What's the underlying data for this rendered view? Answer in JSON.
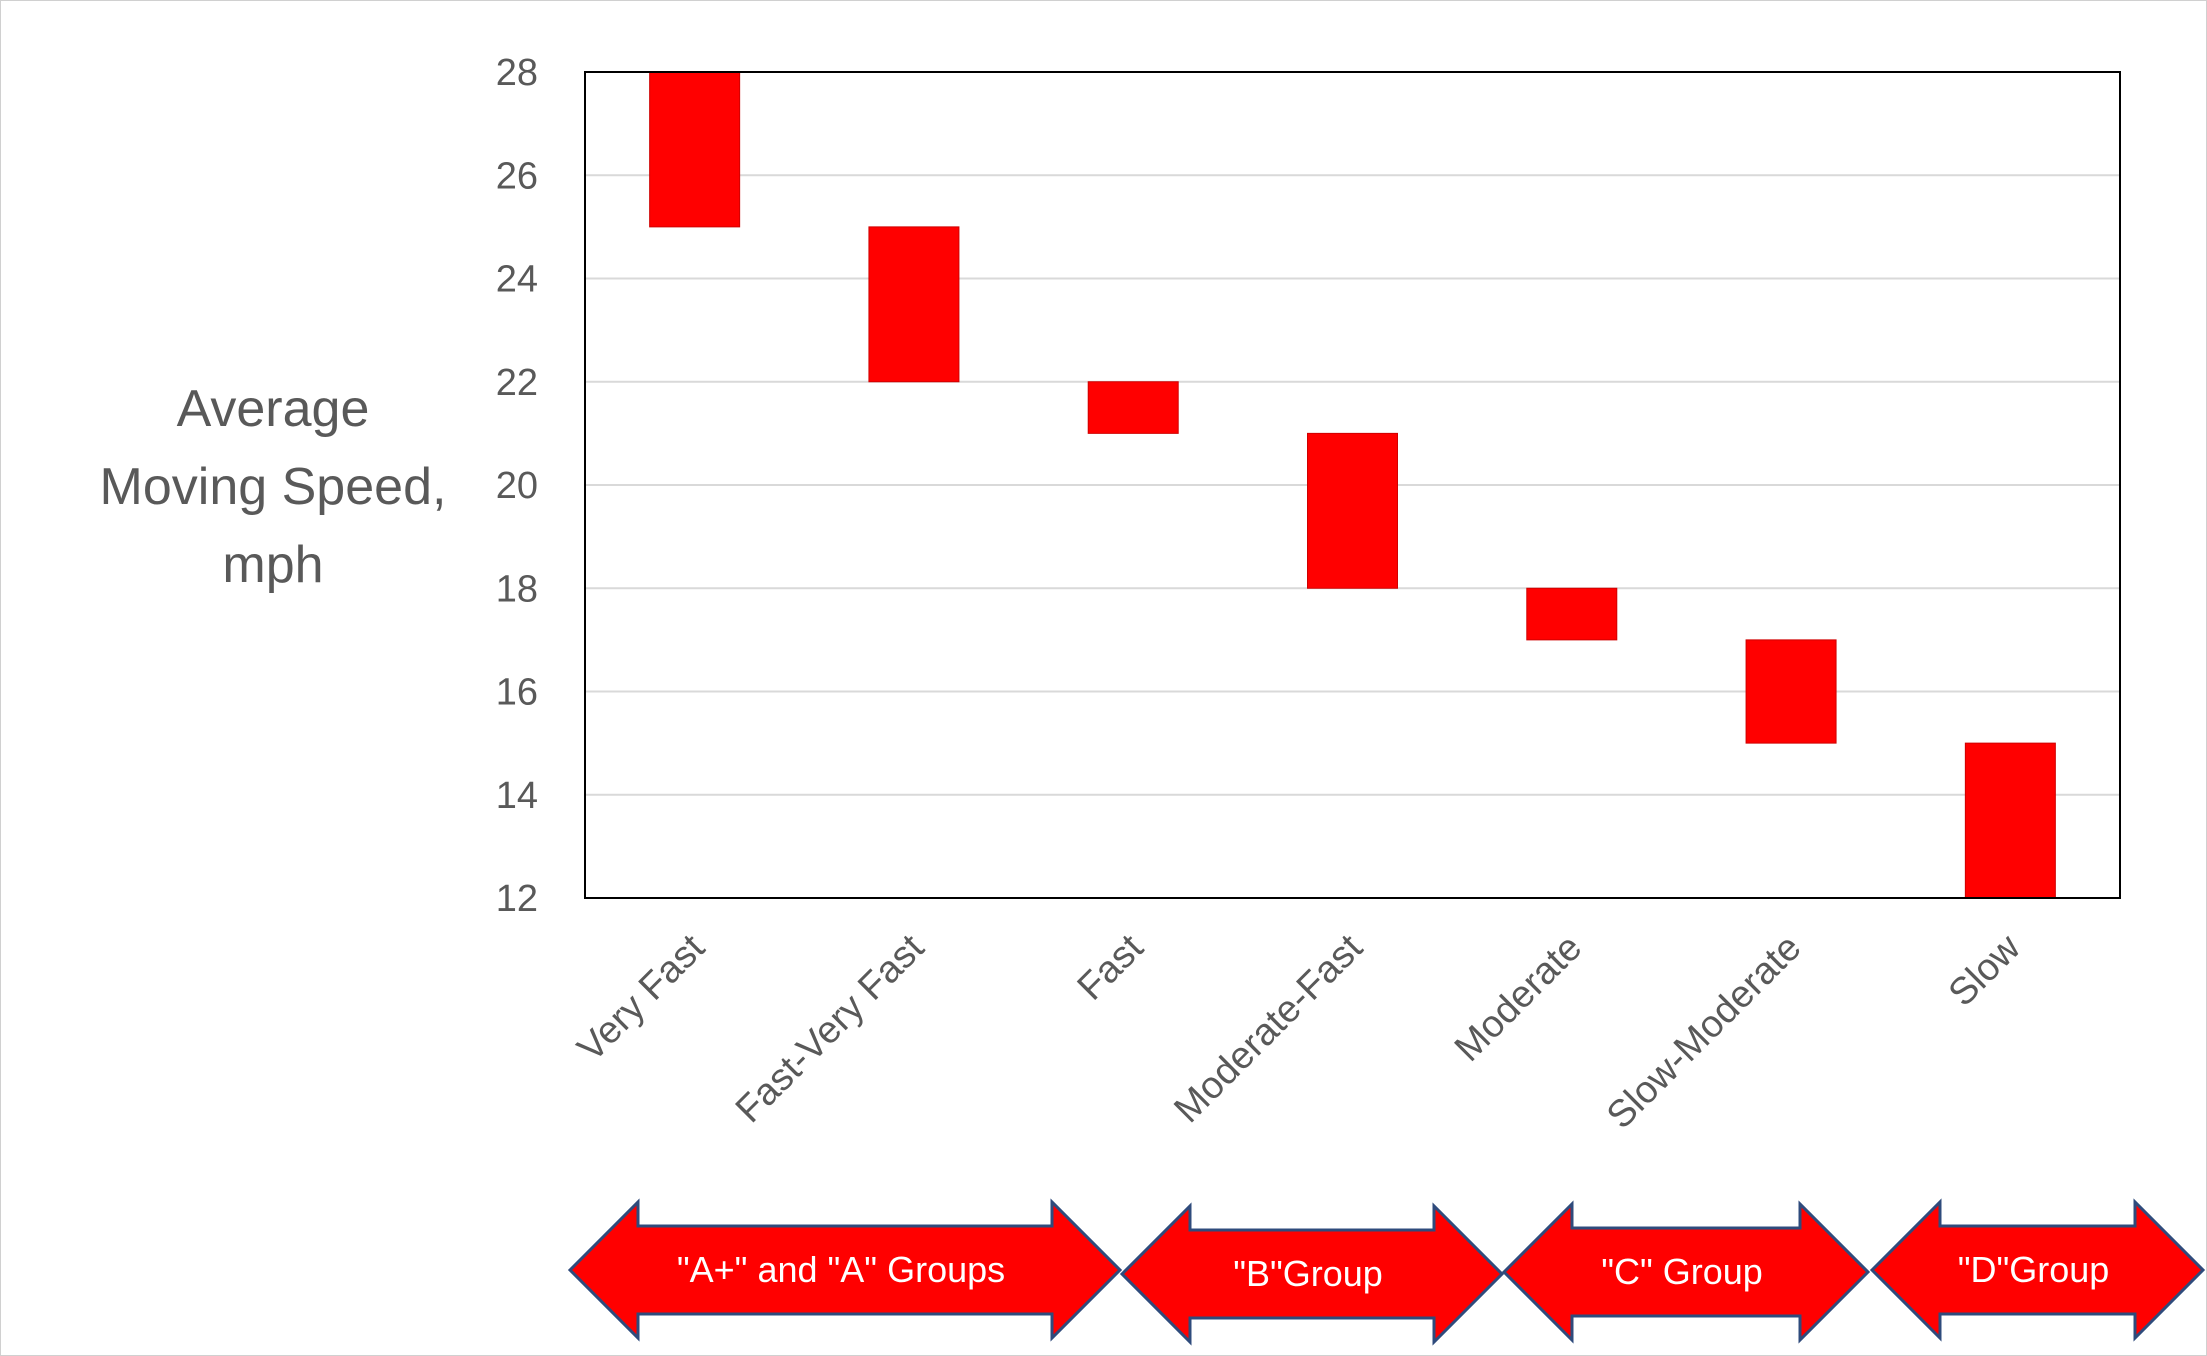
{
  "chart_data": {
    "type": "bar",
    "subtype": "floating-range",
    "ylabel_lines": [
      "Average",
      "Moving Speed,",
      "mph"
    ],
    "ylim": [
      12,
      28
    ],
    "yticks": [
      12,
      14,
      16,
      18,
      20,
      22,
      24,
      26,
      28
    ],
    "grid": "horizontal",
    "categories": [
      "Very Fast",
      "Fast-Very Fast",
      "Fast",
      "Moderate-Fast",
      "Moderate",
      "Slow-Moderate",
      "Slow"
    ],
    "ranges": [
      [
        25,
        28
      ],
      [
        22,
        25
      ],
      [
        21,
        22
      ],
      [
        18,
        21
      ],
      [
        17,
        18
      ],
      [
        15,
        17
      ],
      [
        12,
        15
      ]
    ],
    "bar_color": "#ff0000",
    "groups": [
      {
        "label": "\"A+\" and \"A\" Groups",
        "categories": [
          "Very Fast",
          "Fast-Very Fast"
        ]
      },
      {
        "label": "\"B\"Group",
        "categories": [
          "Fast",
          "Moderate-Fast"
        ]
      },
      {
        "label": "\"C\" Group",
        "categories": [
          "Moderate",
          "Slow-Moderate"
        ]
      },
      {
        "label": "\"D\"Group",
        "categories": [
          "Slow"
        ]
      }
    ],
    "group_arrow_fill": "#ff0000",
    "group_arrow_stroke": "#2f4b7c"
  }
}
